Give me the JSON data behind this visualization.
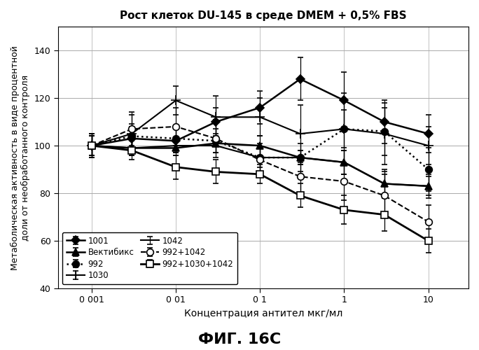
{
  "title": "Рост клеток DU-145 в среде DMEM + 0,5% FBS",
  "xlabel": "Концентрация антител мкг/мл",
  "ylabel": "Метаболическая активность в виде процентной\nдоли от необработанного контроля",
  "caption": "ФИГ. 16C",
  "xlim": [
    0.0004,
    30
  ],
  "ylim": [
    40,
    150
  ],
  "yticks": [
    40,
    60,
    80,
    100,
    120,
    140
  ],
  "xtick_vals": [
    0.001,
    0.01,
    0.1,
    1,
    10
  ],
  "xtick_labels": [
    "0 001",
    "0 01",
    "0 1",
    "1",
    "10"
  ],
  "series": {
    "1001": {
      "x": [
        0.001,
        0.003,
        0.01,
        0.03,
        0.1,
        0.3,
        1,
        3,
        10
      ],
      "y": [
        100,
        103,
        102,
        110,
        116,
        128,
        119,
        110,
        105
      ],
      "yerr": [
        4,
        5,
        5,
        6,
        7,
        9,
        12,
        9,
        8
      ],
      "ls": "-",
      "lw": 1.8,
      "marker": "D",
      "mfc": "#000000",
      "mec": "#000000",
      "ms": 6
    },
    "992": {
      "x": [
        0.001,
        0.003,
        0.01,
        0.03,
        0.1,
        0.3,
        1,
        3,
        10
      ],
      "y": [
        100,
        104,
        103,
        102,
        95,
        95,
        107,
        106,
        90
      ],
      "yerr": [
        4,
        5,
        5,
        5,
        6,
        6,
        8,
        10,
        9
      ],
      "ls": ":",
      "lw": 1.8,
      "marker": "o",
      "mfc": "#000000",
      "mec": "#000000",
      "ms": 7
    },
    "1042": {
      "x": [
        0.001,
        0.003,
        0.01,
        0.03,
        0.1,
        0.3,
        1,
        3,
        10
      ],
      "y": [
        100,
        99,
        100,
        100,
        95,
        95,
        93,
        84,
        83
      ],
      "yerr": [
        4,
        3,
        3,
        3,
        4,
        3,
        5,
        6,
        5
      ],
      "ls": "-",
      "lw": 1.5,
      "marker": "",
      "mfc": "#000000",
      "mec": "#000000",
      "ms": 0
    },
    "992+1030+1042": {
      "x": [
        0.001,
        0.003,
        0.01,
        0.03,
        0.1,
        0.3,
        1,
        3,
        10
      ],
      "y": [
        100,
        98,
        91,
        89,
        88,
        79,
        73,
        71,
        60
      ],
      "yerr": [
        5,
        4,
        5,
        5,
        4,
        5,
        6,
        7,
        5
      ],
      "ls": "-",
      "lw": 2.0,
      "marker": "s",
      "mfc": "#ffffff",
      "mec": "#000000",
      "ms": 7
    },
    "Вектибикс": {
      "x": [
        0.001,
        0.003,
        0.01,
        0.03,
        0.1,
        0.3,
        1,
        3,
        10
      ],
      "y": [
        100,
        99,
        99,
        101,
        100,
        95,
        93,
        84,
        83
      ],
      "yerr": [
        4,
        3,
        3,
        4,
        4,
        3,
        5,
        5,
        4
      ],
      "ls": "-",
      "lw": 1.8,
      "marker": "^",
      "mfc": "#000000",
      "mec": "#000000",
      "ms": 7
    },
    "1030": {
      "x": [
        0.001,
        0.003,
        0.01,
        0.03,
        0.1,
        0.3,
        1,
        3,
        10
      ],
      "y": [
        100,
        105,
        119,
        112,
        112,
        105,
        107,
        105,
        100
      ],
      "yerr": [
        5,
        8,
        6,
        9,
        8,
        12,
        15,
        13,
        8
      ],
      "ls": "-",
      "lw": 1.5,
      "marker": "+",
      "mfc": "#000000",
      "mec": "#000000",
      "ms": 10
    },
    "992+1042": {
      "x": [
        0.001,
        0.003,
        0.01,
        0.03,
        0.1,
        0.3,
        1,
        3,
        10
      ],
      "y": [
        100,
        107,
        108,
        103,
        94,
        87,
        85,
        79,
        68
      ],
      "yerr": [
        5,
        7,
        8,
        8,
        5,
        7,
        8,
        9,
        7
      ],
      "ls": "--",
      "lw": 1.5,
      "marker": "o",
      "mfc": "#ffffff",
      "mec": "#000000",
      "ms": 7
    }
  },
  "legend_order": [
    "1001",
    "Вектибикс",
    "992",
    "1030",
    "1042",
    "992+1042",
    "992+1030+1042"
  ],
  "background_color": "#ffffff",
  "grid_color": "#aaaaaa"
}
